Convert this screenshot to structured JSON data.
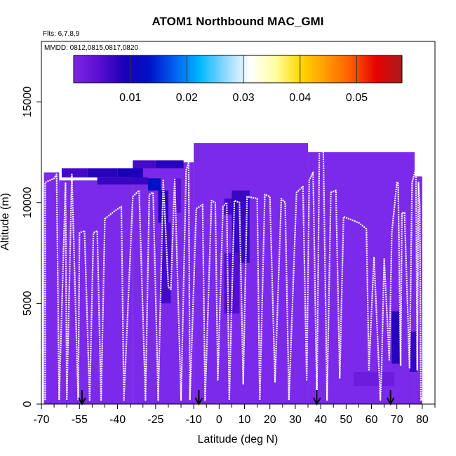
{
  "chart_data": {
    "type": "heatmap",
    "title": "ATOM1 Northbound MAC_GMI",
    "flights_label": "Flts: 6,7,8,9",
    "dates_label": "MMDD: 0812,0815,0817,0820",
    "xlabel": "Latitude (deg N)",
    "ylabel": "Altitude (m)",
    "xlim": [
      -70,
      85
    ],
    "ylim": [
      0,
      18000
    ],
    "x_ticks": [
      "-70",
      "-55",
      "-40",
      "-25",
      "-10",
      "0",
      "10",
      "20",
      "30",
      "40",
      "50",
      "60",
      "70",
      "80"
    ],
    "x_tick_values": [
      -70,
      -55,
      -40,
      -25,
      -10,
      0,
      10,
      20,
      30,
      40,
      50,
      60,
      70,
      80
    ],
    "x_minor_ticks": [
      -65,
      -60,
      -50,
      -45,
      -35,
      -30,
      -20,
      -15,
      -5,
      5,
      15,
      25,
      35,
      45,
      55,
      65,
      75,
      85
    ],
    "y_ticks": [
      "0",
      "5000",
      "10000",
      "15000"
    ],
    "y_tick_values": [
      0,
      5000,
      10000,
      15000
    ],
    "colorbar": {
      "range": [
        0,
        0.058
      ],
      "ticks": [
        "0.01",
        "0.02",
        "0.03",
        "0.04",
        "0.05"
      ],
      "tick_values": [
        0.01,
        0.02,
        0.03,
        0.04,
        0.05
      ],
      "colors": [
        "#7b26e6",
        "#5a0fd0",
        "#1a00b8",
        "#0012c8",
        "#0060f0",
        "#00b8ff",
        "#8fd8ff",
        "#ffffff",
        "#fffea0",
        "#ffd800",
        "#ff9a00",
        "#ff5a00",
        "#e60000",
        "#a81c1c"
      ]
    },
    "background_color": "#7a2ae8",
    "cells": [
      {
        "x0": -69,
        "x1": -63,
        "y0": 0,
        "y1": 11500,
        "v": 0.0
      },
      {
        "x0": -63,
        "x1": -34,
        "y0": 0,
        "y1": 11100,
        "v": 0.0
      },
      {
        "x0": -34,
        "x1": -10,
        "y0": 0,
        "y1": 12000,
        "v": 0.0
      },
      {
        "x0": -10,
        "x1": 35,
        "y0": 0,
        "y1": 12950,
        "v": 0.0
      },
      {
        "x0": 35,
        "x1": 77,
        "y0": 0,
        "y1": 12500,
        "v": 0.0
      },
      {
        "x0": 77,
        "x1": 80,
        "y0": 0,
        "y1": 11300,
        "v": 0.0
      },
      {
        "x0": -62,
        "x1": -52,
        "y0": 11250,
        "y1": 11700,
        "v": 0.006
      },
      {
        "x0": -52,
        "x1": -40,
        "y0": 11250,
        "y1": 11700,
        "v": 0.008
      },
      {
        "x0": -40,
        "x1": -30,
        "y0": 11250,
        "y1": 11700,
        "v": 0.009
      },
      {
        "x0": -34,
        "x1": -25,
        "y0": 11700,
        "y1": 12100,
        "v": 0.006
      },
      {
        "x0": -25,
        "x1": -14,
        "y0": 11700,
        "y1": 12100,
        "v": 0.008
      },
      {
        "x0": -48,
        "x1": -28,
        "y0": 10900,
        "y1": 11250,
        "v": 0.007
      },
      {
        "x0": -28,
        "x1": -23,
        "y0": 10600,
        "y1": 11200,
        "v": 0.013
      },
      {
        "x0": -24,
        "x1": -20,
        "y0": 9000,
        "y1": 10600,
        "v": 0.008
      },
      {
        "x0": -23,
        "x1": -19,
        "y0": 5000,
        "y1": 9000,
        "v": 0.006
      },
      {
        "x0": -18,
        "x1": -15,
        "y0": 9500,
        "y1": 11200,
        "v": 0.004
      },
      {
        "x0": 2,
        "x1": 6,
        "y0": 9400,
        "y1": 10200,
        "v": 0.006
      },
      {
        "x0": 5,
        "x1": 12,
        "y0": 7000,
        "y1": 10600,
        "v": 0.007
      },
      {
        "x0": 2,
        "x1": 8,
        "y0": 4500,
        "y1": 7500,
        "v": 0.005
      },
      {
        "x0": 68,
        "x1": 71,
        "y0": 2000,
        "y1": 4600,
        "v": 0.008
      },
      {
        "x0": 75,
        "x1": 78,
        "y0": 1600,
        "y1": 3600,
        "v": 0.007
      },
      {
        "x0": 53,
        "x1": 69,
        "y0": 900,
        "y1": 1600,
        "v": 0.002
      }
    ],
    "flight_tracks": [
      [
        [
          -68.5,
          200
        ],
        [
          -68.5,
          11000
        ],
        [
          -65,
          11200
        ],
        [
          -64,
          11400
        ],
        [
          -63,
          200
        ],
        [
          -60.5,
          11000
        ],
        [
          -60,
          200
        ],
        [
          -58,
          11400
        ],
        [
          -55.5,
          200
        ],
        [
          -55,
          8500
        ],
        [
          -53,
          8600
        ],
        [
          -51,
          200
        ],
        [
          -49.5,
          8500
        ],
        [
          -48,
          8600
        ],
        [
          -46.5,
          200
        ],
        [
          -45,
          9200
        ],
        [
          -41,
          9600
        ],
        [
          -38.5,
          9800
        ],
        [
          -37.5,
          200
        ],
        [
          -34,
          10300
        ],
        [
          -31.5,
          10600
        ],
        [
          -29,
          200
        ],
        [
          -27.5,
          10400
        ],
        [
          -26,
          10500
        ],
        [
          -24,
          200
        ],
        [
          -22,
          11100
        ],
        [
          -20,
          5800
        ],
        [
          -19,
          5700
        ],
        [
          -17.5,
          11200
        ],
        [
          -15,
          200
        ],
        [
          -13,
          11600
        ],
        [
          -12,
          12000
        ],
        [
          -11.5,
          200
        ],
        [
          -9,
          9700
        ],
        [
          -6.5,
          9900
        ],
        [
          -5.5,
          200
        ],
        [
          -3,
          10100
        ],
        [
          -1.5,
          10000
        ],
        [
          -0.5,
          1200
        ],
        [
          1.5,
          9800
        ],
        [
          3,
          10000
        ],
        [
          4,
          200
        ],
        [
          6,
          10100
        ],
        [
          8,
          10000
        ],
        [
          9.5,
          1000
        ],
        [
          11,
          10300
        ],
        [
          15,
          10200
        ],
        [
          16,
          200
        ],
        [
          18,
          10400
        ],
        [
          20,
          10300
        ],
        [
          22,
          1100
        ],
        [
          24.5,
          10200
        ],
        [
          26,
          10000
        ],
        [
          27.5,
          200
        ],
        [
          30.5,
          10500
        ],
        [
          33,
          10800
        ],
        [
          34.5,
          1200
        ],
        [
          35.5,
          11100
        ],
        [
          37,
          11500
        ],
        [
          38.5,
          200
        ],
        [
          39.5,
          12800
        ],
        [
          41,
          12900
        ],
        [
          42.5,
          200
        ],
        [
          44,
          10500
        ],
        [
          46,
          10600
        ],
        [
          47.5,
          1300
        ],
        [
          49,
          9300
        ],
        [
          55,
          9000
        ],
        [
          58,
          8700
        ],
        [
          59,
          1700
        ],
        [
          61,
          7300
        ],
        [
          63.5,
          200
        ],
        [
          64,
          1800
        ],
        [
          65,
          7200
        ],
        [
          67,
          2200
        ],
        [
          68,
          8500
        ],
        [
          70,
          11000
        ],
        [
          70.5,
          11000
        ],
        [
          71.5,
          1900
        ],
        [
          72,
          9500
        ],
        [
          73,
          9500
        ],
        [
          75,
          1800
        ],
        [
          76,
          11000
        ],
        [
          77.5,
          11700
        ],
        [
          78,
          1700
        ],
        [
          78.5,
          11000
        ],
        [
          79,
          9800
        ],
        [
          79.5,
          200
        ],
        [
          80,
          300
        ]
      ]
    ],
    "arrow_markers_lat": [
      -54,
      -8,
      38.5,
      67.5
    ]
  }
}
